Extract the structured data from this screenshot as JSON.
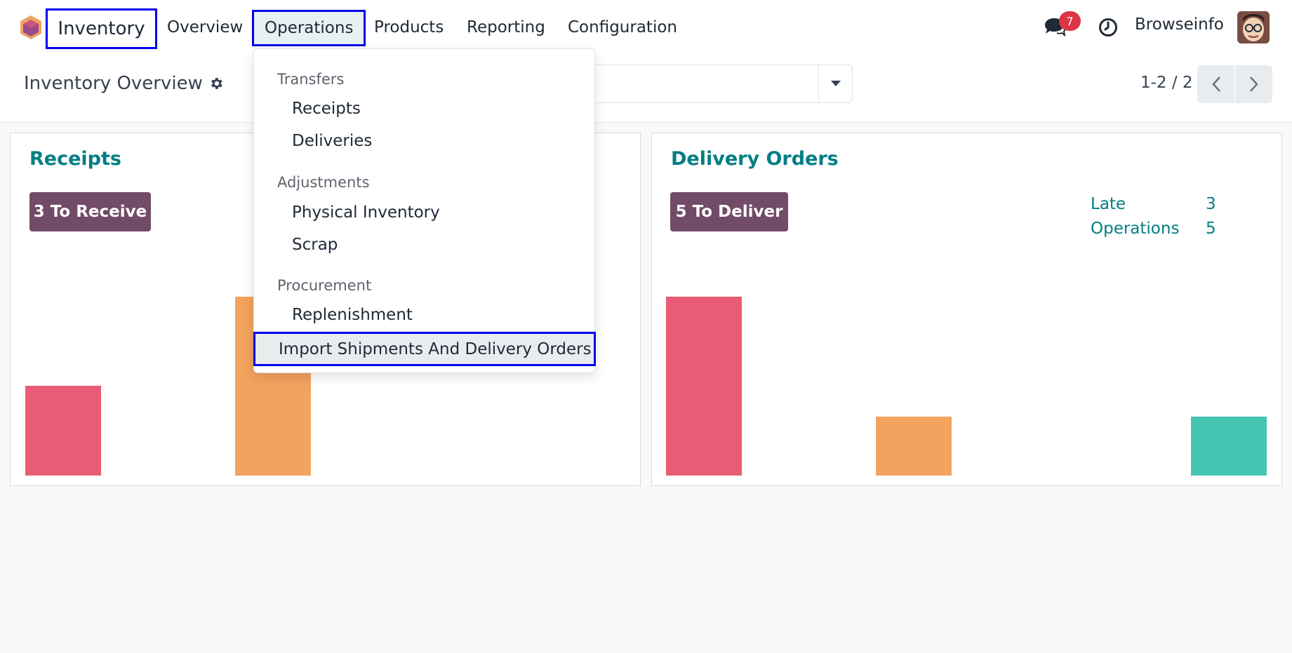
{
  "navbar": {
    "app_name": "Inventory",
    "menu": [
      "Overview",
      "Operations",
      "Products",
      "Reporting",
      "Configuration"
    ],
    "active_menu": "Operations",
    "chat_badge": "7",
    "user_name": "Browseinfo"
  },
  "control_panel": {
    "title": "Inventory Overview",
    "pager": "1-2 / 2"
  },
  "dropdown": {
    "sections": [
      {
        "header": "Transfers",
        "items": [
          "Receipts",
          "Deliveries"
        ]
      },
      {
        "header": "Adjustments",
        "items": [
          "Physical Inventory",
          "Scrap"
        ]
      },
      {
        "header": "Procurement",
        "items": [
          "Replenishment"
        ]
      }
    ],
    "highlighted_item": "Import Shipments And Delivery Orders"
  },
  "cards": [
    {
      "title": "Receipts",
      "button": "3 To Receive",
      "chart_bars": [
        {
          "color": "#e85d75",
          "value": 0.5
        },
        {
          "color": "#f2a35e",
          "value": 1.0
        }
      ]
    },
    {
      "title": "Delivery Orders",
      "button": "5 To Deliver",
      "stats": [
        {
          "label": "Late",
          "value": "3"
        },
        {
          "label": "Operations",
          "value": "5"
        }
      ],
      "chart_bars": [
        {
          "color": "#e85d75",
          "value": 1.0
        },
        {
          "color": "#f2a35e",
          "value": 0.33
        },
        {
          "color": "#44c5b1",
          "value": 0.33
        }
      ]
    }
  ],
  "colors": {
    "accent": "#017e84",
    "button": "#714b67",
    "highlight_border": "#0000ee",
    "badge": "#dc3545"
  }
}
